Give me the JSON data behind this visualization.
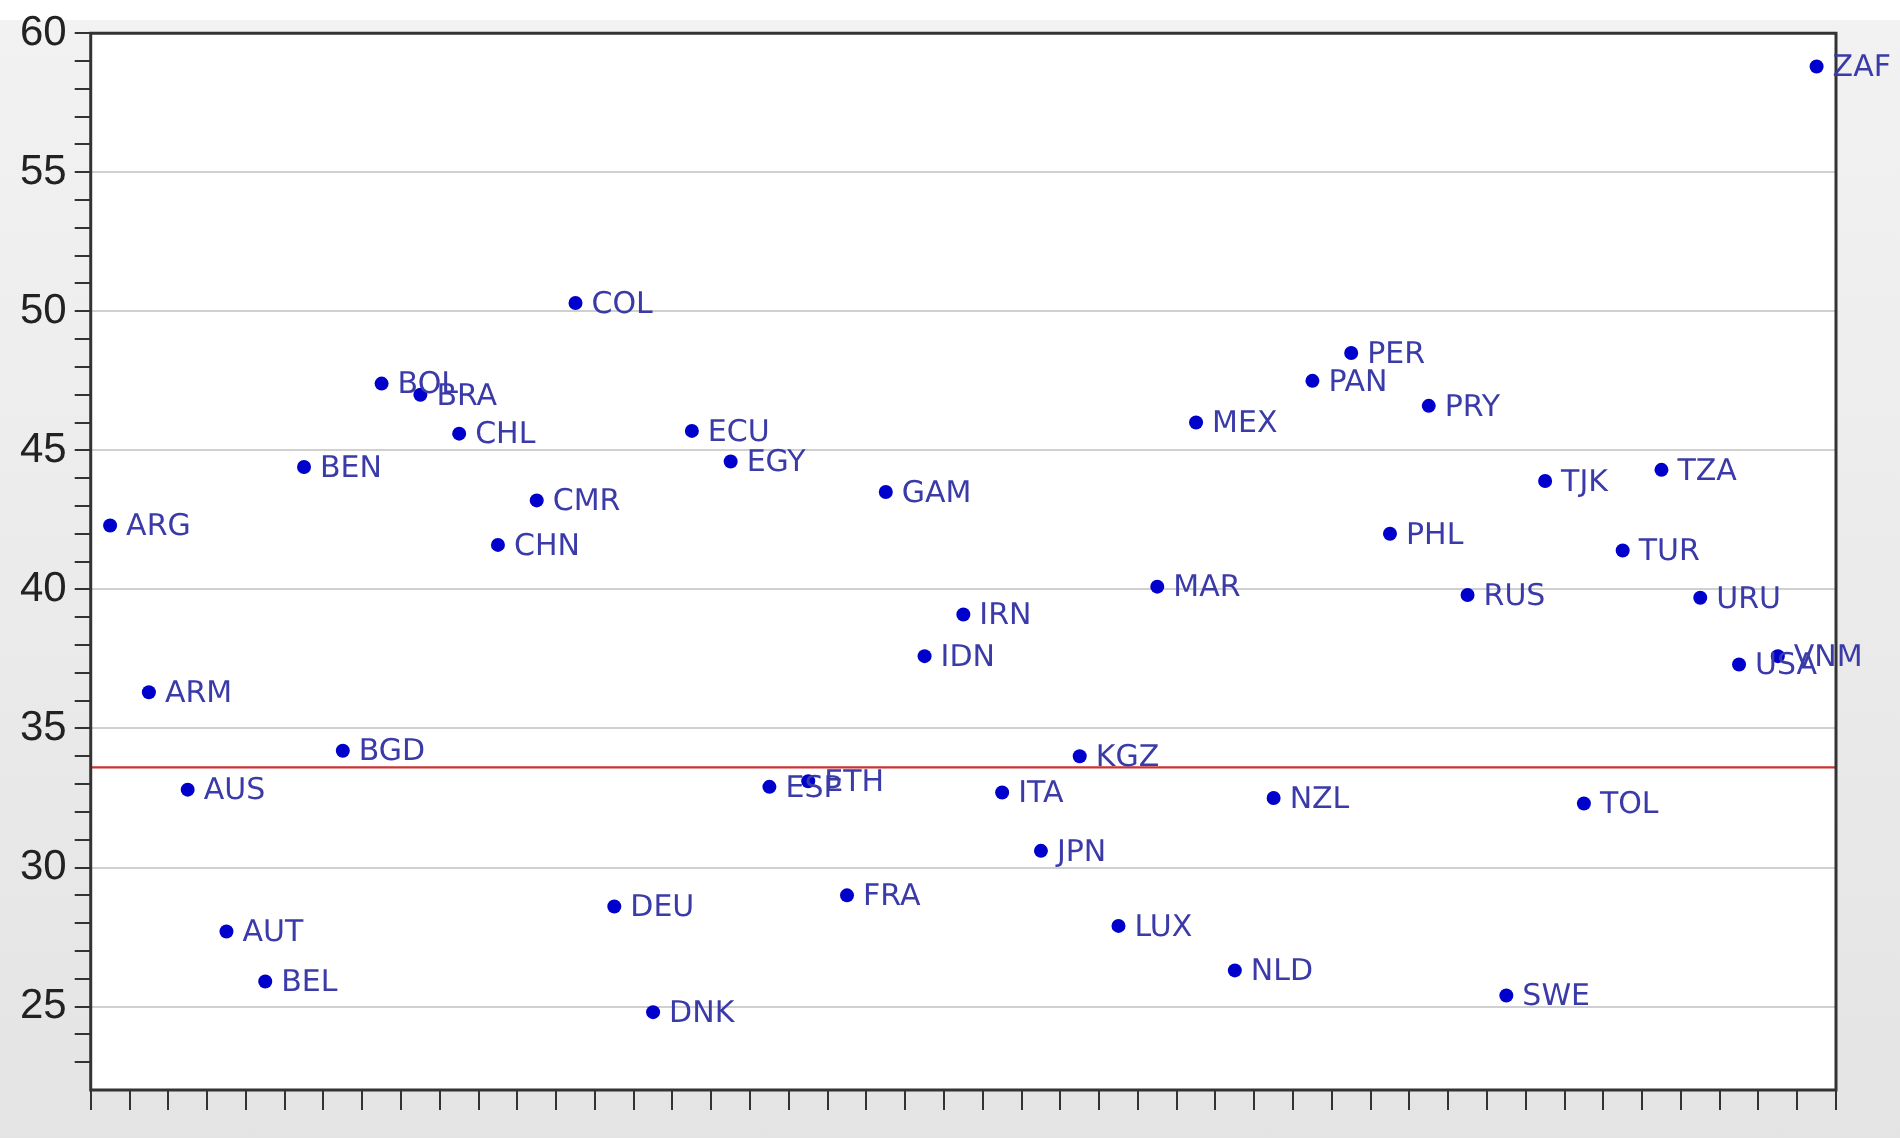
{
  "chart_data": {
    "type": "scatter",
    "categories": [
      null,
      null,
      null,
      null,
      null,
      null,
      null,
      null,
      null,
      null,
      null,
      null,
      null,
      null,
      null,
      null,
      null,
      null,
      null,
      null,
      null,
      null,
      null,
      null,
      null,
      null,
      null,
      null,
      null,
      null,
      null,
      null,
      null,
      null,
      null,
      null,
      null,
      null,
      null,
      null,
      null,
      null,
      null,
      null,
      null
    ],
    "series": [
      {
        "color": "#0000cc",
        "values": [
          42.3,
          36.3,
          32.8,
          27.7,
          25.9,
          44.4,
          34.2,
          47.4,
          47.0,
          45.6,
          41.6,
          43.2,
          50.3,
          28.6,
          24.8,
          45.7,
          44.6,
          32.9,
          33.1,
          29.0,
          43.5,
          37.6,
          39.1,
          32.7,
          30.6,
          34.0,
          27.9,
          40.1,
          46.0,
          26.3,
          32.5,
          47.5,
          48.5,
          42.0,
          46.6,
          39.8,
          25.4,
          43.9,
          32.3,
          41.4,
          44.3,
          39.7,
          37.3,
          37.6,
          58.8
        ],
        "value_labels": [
          "ARG",
          "ARM",
          "AUS",
          "AUT",
          "BEL",
          "BEN",
          "BGD",
          "BOL",
          "BRA",
          "CHL",
          "CHN",
          "CMR",
          "COL",
          "DEU",
          "DNK",
          "ECU",
          "EGY",
          "ESP",
          "ETH",
          "FRA",
          "GAM",
          "IDN",
          "IRN",
          "ITA",
          "JPN",
          "KGZ",
          "LUX",
          "MAR",
          "MEX",
          "NLD",
          "NZL",
          "PAN",
          "PER",
          "PHL",
          "PRY",
          "RUS",
          "SWE",
          "TJK",
          "TOL",
          "TUR",
          "TZA",
          "URU",
          "USA",
          "VNM",
          "ZAF"
        ]
      }
    ],
    "ylim": [
      22,
      60
    ],
    "yticks": [
      {
        "value": 23,
        "label": null
      },
      {
        "value": 24,
        "label": null
      },
      25,
      {
        "value": 26,
        "label": null
      },
      {
        "value": 27,
        "label": null
      },
      {
        "value": 28,
        "label": null
      },
      {
        "value": 29,
        "label": null
      },
      30,
      {
        "value": 31,
        "label": null
      },
      {
        "value": 32,
        "label": null
      },
      {
        "value": 33,
        "label": null
      },
      {
        "value": 34,
        "label": null
      },
      35,
      {
        "value": 36,
        "label": null
      },
      {
        "value": 37,
        "label": null
      },
      {
        "value": 38,
        "label": null
      },
      {
        "value": 39,
        "label": null
      },
      40,
      {
        "value": 41,
        "label": null
      },
      {
        "value": 42,
        "label": null
      },
      {
        "value": 43,
        "label": null
      },
      {
        "value": 44,
        "label": null
      },
      45,
      {
        "value": 46,
        "label": null
      },
      {
        "value": 47,
        "label": null
      },
      {
        "value": 48,
        "label": null
      },
      {
        "value": 49,
        "label": null
      },
      50,
      {
        "value": 51,
        "label": null
      },
      {
        "value": 52,
        "label": null
      },
      {
        "value": 53,
        "label": null
      },
      {
        "value": 54,
        "label": null
      },
      55,
      {
        "value": 56,
        "label": null
      },
      {
        "value": 57,
        "label": null
      },
      {
        "value": 58,
        "label": null
      },
      {
        "value": 59,
        "label": null
      },
      60
    ],
    "ref_lines": [
      {
        "axis": "y",
        "value": 33.6,
        "color": "#cc3333"
      }
    ],
    "grid": "y",
    "legend": false,
    "marker": "circle",
    "tick_labels": "y"
  }
}
